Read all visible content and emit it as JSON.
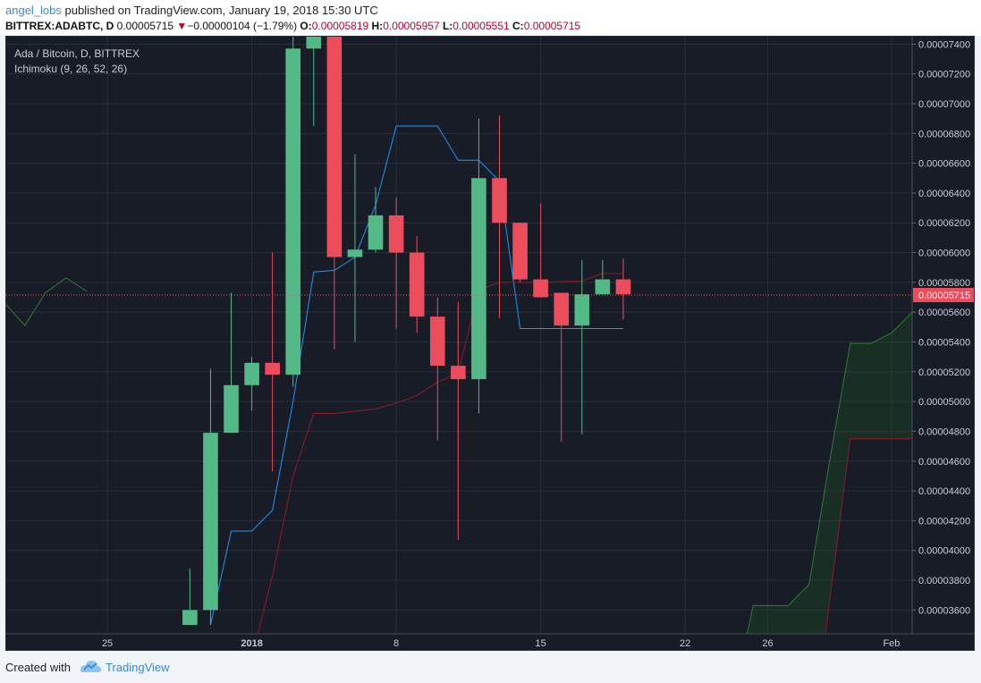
{
  "header": {
    "author": "angel_lobs",
    "published_text": "published on TradingView.com, January 19, 2018 15:30 UTC",
    "symbol": "BITTREX:ADABTC, D",
    "last": "0.00005715",
    "change_arrow": "▼",
    "change": "−0.00000104 (−1.79%)",
    "o_label": "O:",
    "o_value": "0.00005819",
    "h_label": "H:",
    "h_value": "0.00005957",
    "l_label": "L:",
    "l_value": "0.00005551",
    "c_label": "C:",
    "c_value": "0.00005715"
  },
  "legend": {
    "pair": "Ada / Bitcoin, D, BITTREX",
    "indicator": "Ichimoku (9, 26, 52, 26)"
  },
  "footer": {
    "created_with": "Created with",
    "brand": "TradingView"
  },
  "colors": {
    "background": "#181c27",
    "up": "#53b987",
    "down": "#eb4d5c",
    "tenkan": "#2196f3",
    "kijun": "#8e1b25",
    "cloud_up": "#1b5e20",
    "last_price": "#eb4d5c",
    "grid": "#2a2e39",
    "text": "#c9cbd3"
  },
  "chart_data": {
    "type": "candlestick",
    "title": "Ada / Bitcoin, D, BITTREX",
    "x_tick_labels": [
      {
        "label": "25",
        "day": 25
      },
      {
        "label": "2018",
        "day": 32,
        "bold": true
      },
      {
        "label": "8",
        "day": 39
      },
      {
        "label": "15",
        "day": 46
      },
      {
        "label": "22",
        "day": 53
      },
      {
        "label": "26",
        "day": 57
      },
      {
        "label": "Feb",
        "day": 63
      }
    ],
    "x_range_days": [
      20.1,
      64.0
    ],
    "y_ticks": [
      "0.00003600",
      "0.00003800",
      "0.00004000",
      "0.00004200",
      "0.00004400",
      "0.00004600",
      "0.00004800",
      "0.00005000",
      "0.00005200",
      "0.00005400",
      "0.00005600",
      "0.00005800",
      "0.00006000",
      "0.00006200",
      "0.00006400",
      "0.00006600",
      "0.00006800",
      "0.00007000",
      "0.00007200",
      "0.00007400"
    ],
    "y_range": [
      3.44e-05,
      7.45e-05
    ],
    "last_price": "0.00005715",
    "candles": [
      {
        "d": 29,
        "o": 3.5e-05,
        "h": 3.88e-05,
        "l": 3.5e-05,
        "c": 3.6e-05
      },
      {
        "d": 30,
        "o": 3.6e-05,
        "h": 5.22e-05,
        "l": 3.5e-05,
        "c": 4.79e-05
      },
      {
        "d": 31,
        "o": 4.79e-05,
        "h": 5.73e-05,
        "l": 4.79e-05,
        "c": 5.11e-05
      },
      {
        "d": 32,
        "o": 5.11e-05,
        "h": 5.3e-05,
        "l": 4.94e-05,
        "c": 5.26e-05
      },
      {
        "d": 33,
        "o": 5.26e-05,
        "h": 6e-05,
        "l": 4.53e-05,
        "c": 5.18e-05
      },
      {
        "d": 34,
        "o": 5.18e-05,
        "h": 7.46e-05,
        "l": 5.1e-05,
        "c": 7.37e-05
      },
      {
        "d": 35,
        "o": 7.37e-05,
        "h": 7.6e-05,
        "l": 6.85e-05,
        "c": 7.45e-05
      },
      {
        "d": 36,
        "o": 7.45e-05,
        "h": 7.5e-05,
        "l": 5.35e-05,
        "c": 5.97e-05
      },
      {
        "d": 37,
        "o": 5.97e-05,
        "h": 6.66e-05,
        "l": 5.4e-05,
        "c": 6.02e-05
      },
      {
        "d": 38,
        "o": 6.02e-05,
        "h": 6.44e-05,
        "l": 6e-05,
        "c": 6.25e-05
      },
      {
        "d": 39,
        "o": 6.25e-05,
        "h": 6.37e-05,
        "l": 5.49e-05,
        "c": 6e-05
      },
      {
        "d": 40,
        "o": 6e-05,
        "h": 6.11e-05,
        "l": 5.46e-05,
        "c": 5.57e-05
      },
      {
        "d": 41,
        "o": 5.57e-05,
        "h": 5.7e-05,
        "l": 4.74e-05,
        "c": 5.24e-05
      },
      {
        "d": 42,
        "o": 5.24e-05,
        "h": 5.67e-05,
        "l": 4.07e-05,
        "c": 5.15e-05
      },
      {
        "d": 43,
        "o": 5.15e-05,
        "h": 6.9e-05,
        "l": 4.92e-05,
        "c": 6.5e-05
      },
      {
        "d": 44,
        "o": 6.5e-05,
        "h": 6.92e-05,
        "l": 5.56e-05,
        "c": 6.2e-05
      },
      {
        "d": 45,
        "o": 6.2e-05,
        "h": 6.2e-05,
        "l": 5.8e-05,
        "c": 5.82e-05
      },
      {
        "d": 46,
        "o": 5.82e-05,
        "h": 6.33e-05,
        "l": 5.7e-05,
        "c": 5.7e-05
      },
      {
        "d": 47,
        "o": 5.73e-05,
        "h": 5.73e-05,
        "l": 4.73e-05,
        "c": 5.51e-05
      },
      {
        "d": 48,
        "o": 5.51e-05,
        "h": 5.95e-05,
        "l": 4.78e-05,
        "c": 5.72e-05
      },
      {
        "d": 49,
        "o": 5.72e-05,
        "h": 5.95e-05,
        "l": 5.72e-05,
        "c": 5.82e-05
      },
      {
        "d": 50,
        "o": 5.82e-05,
        "h": 5.96e-05,
        "l": 5.55e-05,
        "c": 5.72e-05
      }
    ],
    "series": [
      {
        "name": "Tenkan",
        "color": "#2196f3",
        "points": [
          [
            30,
            3.5e-05
          ],
          [
            31,
            4.13e-05
          ],
          [
            32,
            4.13e-05
          ],
          [
            33,
            4.27e-05
          ],
          [
            34,
            5e-05
          ],
          [
            35,
            5.87e-05
          ],
          [
            36,
            5.88e-05
          ],
          [
            37,
            5.97e-05
          ],
          [
            38,
            6.32e-05
          ],
          [
            39,
            6.85e-05
          ],
          [
            40,
            6.85e-05
          ],
          [
            41,
            6.85e-05
          ],
          [
            42,
            6.62e-05
          ],
          [
            43,
            6.62e-05
          ],
          [
            44,
            6.48e-05
          ],
          [
            45,
            5.49e-05
          ],
          [
            50,
            5.49e-05
          ]
        ]
      },
      {
        "name": "Kijun",
        "color": "#8e1b25",
        "points": [
          [
            32.3,
            3.44e-05
          ],
          [
            33,
            3.83e-05
          ],
          [
            34,
            4.5e-05
          ],
          [
            35,
            4.92e-05
          ],
          [
            36,
            4.92e-05
          ],
          [
            38,
            4.95e-05
          ],
          [
            39,
            4.99e-05
          ],
          [
            40,
            5.04e-05
          ],
          [
            41,
            5.13e-05
          ],
          [
            42,
            5.19e-05
          ],
          [
            43,
            5.75e-05
          ],
          [
            44,
            5.8e-05
          ],
          [
            45,
            5.8e-05
          ],
          [
            46,
            5.8e-05
          ],
          [
            48,
            5.81e-05
          ],
          [
            49,
            5.86e-05
          ],
          [
            50,
            5.86e-05
          ]
        ]
      },
      {
        "name": "Lagging",
        "color": "#2e7d32",
        "points": [
          [
            20.1,
            5.65e-05
          ],
          [
            21,
            5.51e-05
          ],
          [
            22,
            5.73e-05
          ],
          [
            23,
            5.83e-05
          ],
          [
            24,
            5.74e-05
          ]
        ]
      },
      {
        "name": "SenkouA",
        "color": "#2e7d32",
        "points": [
          [
            56,
            3.44e-05
          ],
          [
            56.3,
            3.63e-05
          ],
          [
            57,
            3.63e-05
          ],
          [
            58,
            3.63e-05
          ],
          [
            59,
            3.77e-05
          ],
          [
            60,
            4.6e-05
          ],
          [
            61,
            5.39e-05
          ],
          [
            62,
            5.39e-05
          ],
          [
            63,
            5.46e-05
          ],
          [
            64,
            5.6e-05
          ]
        ]
      },
      {
        "name": "SenkouB",
        "color": "#8e1b25",
        "points": [
          [
            59.8,
            3.44e-05
          ],
          [
            61,
            4.75e-05
          ],
          [
            64,
            4.75e-05
          ]
        ]
      }
    ]
  }
}
